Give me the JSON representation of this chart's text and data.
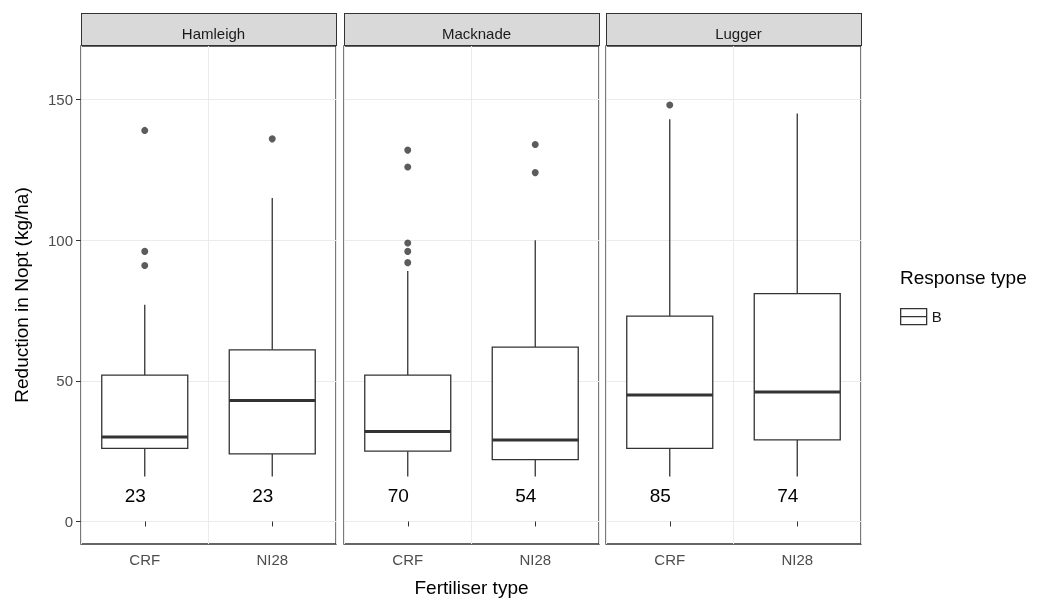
{
  "chart_data": [
    {
      "type": "box",
      "title": "Hamleigh",
      "ylabel": "Reduction in Nopt (kg/ha)",
      "categories": [
        "CRF",
        "NI28"
      ],
      "series": [
        {
          "color": "#333333",
          "boxes": [
            {
              "low": 16,
              "q1": 26,
              "median": 30,
              "q3": 52,
              "high": 77,
              "outliers": [
                139,
                96,
                91
              ]
            },
            {
              "low": 16,
              "q1": 24,
              "median": 43,
              "q3": 61,
              "high": 115,
              "outliers": [
                136
              ]
            }
          ]
        }
      ],
      "annotations": [
        "23",
        "23"
      ],
      "ylim": [
        -8,
        169
      ],
      "yticks": [
        0,
        50,
        100,
        150
      ],
      "grid": true
    },
    {
      "type": "box",
      "title": "Macknade",
      "xlabel": "Fertiliser type",
      "categories": [
        "CRF",
        "NI28"
      ],
      "series": [
        {
          "color": "#333333",
          "boxes": [
            {
              "low": 16,
              "q1": 25,
              "median": 32,
              "q3": 52,
              "high": 89,
              "outliers": [
                132,
                126,
                99,
                96,
                92
              ]
            },
            {
              "low": 16,
              "q1": 22,
              "median": 29,
              "q3": 62,
              "high": 100,
              "outliers": [
                134,
                124
              ]
            }
          ]
        }
      ],
      "annotations": [
        "70",
        "54"
      ],
      "ylim": [
        -8,
        169
      ],
      "yticks": [
        0,
        50,
        100,
        150
      ],
      "grid": true,
      "tick_labels": "x"
    },
    {
      "type": "box",
      "title": "Lugger",
      "legend_title": "Response type",
      "legend": "right",
      "categories": [
        "CRF",
        "NI28"
      ],
      "series": [
        {
          "name": "B",
          "color": "#333333",
          "boxes": [
            {
              "low": 16,
              "q1": 26,
              "median": 45,
              "q3": 73,
              "high": 143,
              "outliers": [
                148
              ]
            },
            {
              "low": 16,
              "q1": 29,
              "median": 46,
              "q3": 81,
              "high": 145
            }
          ]
        }
      ],
      "annotations": [
        "85",
        "74"
      ],
      "ylim": [
        -8,
        169
      ],
      "yticks": [
        0,
        50,
        100,
        150
      ],
      "grid": true,
      "tick_labels": "x"
    }
  ]
}
